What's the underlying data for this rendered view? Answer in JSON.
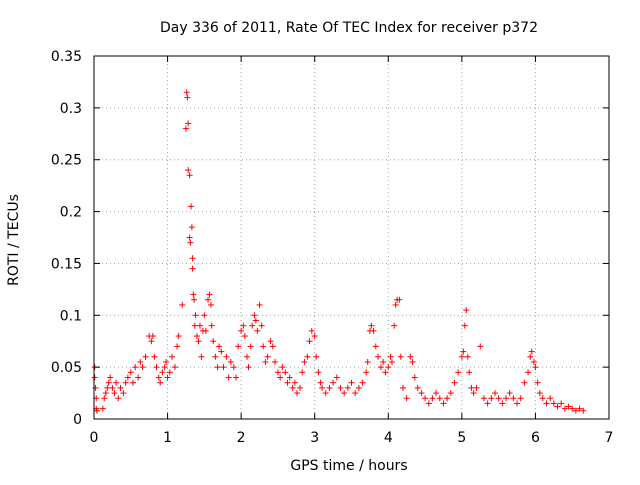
{
  "chart_data": {
    "type": "scatter",
    "title": "Day 336 of 2011, Rate Of TEC Index for receiver p372",
    "xlabel": "GPS time / hours",
    "ylabel": "ROTI / TECUs",
    "xlim": [
      0,
      7
    ],
    "ylim": [
      0,
      0.35
    ],
    "xticks": [
      0,
      1,
      2,
      3,
      4,
      5,
      6,
      7
    ],
    "yticks": [
      0,
      0.05,
      0.1,
      0.15,
      0.2,
      0.25,
      0.3,
      0.35
    ],
    "xtick_labels": [
      "0",
      "1",
      "2",
      "3",
      "4",
      "5",
      "6",
      "7"
    ],
    "ytick_labels": [
      "0",
      "0.05",
      "0.1",
      "0.15",
      "0.2",
      "0.25",
      "0.3",
      "0.35"
    ],
    "grid": true,
    "marker": "plus",
    "color": "#ff0000",
    "series": [
      {
        "points": [
          [
            0.01,
            0.05
          ],
          [
            0.01,
            0.04
          ],
          [
            0.02,
            0.03
          ],
          [
            0.03,
            0.02
          ],
          [
            0.03,
            0.01
          ],
          [
            0.04,
            0.008
          ],
          [
            0.12,
            0.01
          ],
          [
            0.14,
            0.02
          ],
          [
            0.16,
            0.025
          ],
          [
            0.18,
            0.03
          ],
          [
            0.2,
            0.035
          ],
          [
            0.22,
            0.04
          ],
          [
            0.25,
            0.03
          ],
          [
            0.28,
            0.025
          ],
          [
            0.3,
            0.035
          ],
          [
            0.33,
            0.02
          ],
          [
            0.36,
            0.03
          ],
          [
            0.4,
            0.025
          ],
          [
            0.43,
            0.035
          ],
          [
            0.46,
            0.04
          ],
          [
            0.5,
            0.045
          ],
          [
            0.53,
            0.035
          ],
          [
            0.56,
            0.05
          ],
          [
            0.6,
            0.04
          ],
          [
            0.63,
            0.055
          ],
          [
            0.66,
            0.05
          ],
          [
            0.7,
            0.06
          ],
          [
            0.75,
            0.08
          ],
          [
            0.78,
            0.075
          ],
          [
            0.8,
            0.08
          ],
          [
            0.82,
            0.06
          ],
          [
            0.85,
            0.05
          ],
          [
            0.88,
            0.04
          ],
          [
            0.9,
            0.035
          ],
          [
            0.93,
            0.045
          ],
          [
            0.96,
            0.05
          ],
          [
            0.98,
            0.055
          ],
          [
            1.0,
            0.04
          ],
          [
            1.03,
            0.045
          ],
          [
            1.06,
            0.06
          ],
          [
            1.1,
            0.05
          ],
          [
            1.13,
            0.07
          ],
          [
            1.15,
            0.08
          ],
          [
            1.2,
            0.11
          ],
          [
            1.25,
            0.28
          ],
          [
            1.26,
            0.315
          ],
          [
            1.27,
            0.31
          ],
          [
            1.28,
            0.285
          ],
          [
            1.28,
            0.24
          ],
          [
            1.3,
            0.235
          ],
          [
            1.3,
            0.175
          ],
          [
            1.31,
            0.17
          ],
          [
            1.32,
            0.205
          ],
          [
            1.33,
            0.185
          ],
          [
            1.34,
            0.155
          ],
          [
            1.34,
            0.145
          ],
          [
            1.35,
            0.12
          ],
          [
            1.36,
            0.115
          ],
          [
            1.37,
            0.09
          ],
          [
            1.38,
            0.1
          ],
          [
            1.4,
            0.08
          ],
          [
            1.42,
            0.075
          ],
          [
            1.44,
            0.09
          ],
          [
            1.46,
            0.06
          ],
          [
            1.48,
            0.085
          ],
          [
            1.5,
            0.1
          ],
          [
            1.52,
            0.085
          ],
          [
            1.55,
            0.115
          ],
          [
            1.57,
            0.12
          ],
          [
            1.59,
            0.11
          ],
          [
            1.6,
            0.09
          ],
          [
            1.62,
            0.075
          ],
          [
            1.65,
            0.06
          ],
          [
            1.68,
            0.05
          ],
          [
            1.7,
            0.07
          ],
          [
            1.73,
            0.065
          ],
          [
            1.76,
            0.05
          ],
          [
            1.8,
            0.06
          ],
          [
            1.83,
            0.04
          ],
          [
            1.86,
            0.055
          ],
          [
            1.9,
            0.05
          ],
          [
            1.93,
            0.04
          ],
          [
            1.96,
            0.07
          ],
          [
            2.0,
            0.085
          ],
          [
            2.03,
            0.09
          ],
          [
            2.05,
            0.08
          ],
          [
            2.08,
            0.06
          ],
          [
            2.1,
            0.05
          ],
          [
            2.13,
            0.07
          ],
          [
            2.15,
            0.09
          ],
          [
            2.18,
            0.1
          ],
          [
            2.2,
            0.095
          ],
          [
            2.22,
            0.085
          ],
          [
            2.25,
            0.11
          ],
          [
            2.28,
            0.09
          ],
          [
            2.3,
            0.07
          ],
          [
            2.33,
            0.055
          ],
          [
            2.36,
            0.06
          ],
          [
            2.4,
            0.075
          ],
          [
            2.43,
            0.07
          ],
          [
            2.46,
            0.055
          ],
          [
            2.5,
            0.045
          ],
          [
            2.53,
            0.04
          ],
          [
            2.56,
            0.05
          ],
          [
            2.6,
            0.045
          ],
          [
            2.63,
            0.035
          ],
          [
            2.66,
            0.04
          ],
          [
            2.7,
            0.03
          ],
          [
            2.73,
            0.035
          ],
          [
            2.76,
            0.025
          ],
          [
            2.8,
            0.03
          ],
          [
            2.83,
            0.045
          ],
          [
            2.86,
            0.055
          ],
          [
            2.9,
            0.06
          ],
          [
            2.93,
            0.075
          ],
          [
            2.96,
            0.085
          ],
          [
            3.0,
            0.08
          ],
          [
            3.02,
            0.06
          ],
          [
            3.05,
            0.045
          ],
          [
            3.08,
            0.035
          ],
          [
            3.1,
            0.03
          ],
          [
            3.15,
            0.025
          ],
          [
            3.2,
            0.03
          ],
          [
            3.25,
            0.035
          ],
          [
            3.3,
            0.04
          ],
          [
            3.35,
            0.03
          ],
          [
            3.4,
            0.025
          ],
          [
            3.45,
            0.03
          ],
          [
            3.5,
            0.035
          ],
          [
            3.55,
            0.025
          ],
          [
            3.6,
            0.03
          ],
          [
            3.65,
            0.035
          ],
          [
            3.7,
            0.045
          ],
          [
            3.72,
            0.055
          ],
          [
            3.75,
            0.085
          ],
          [
            3.77,
            0.09
          ],
          [
            3.8,
            0.085
          ],
          [
            3.83,
            0.07
          ],
          [
            3.86,
            0.06
          ],
          [
            3.9,
            0.05
          ],
          [
            3.93,
            0.055
          ],
          [
            3.96,
            0.045
          ],
          [
            4.0,
            0.05
          ],
          [
            4.03,
            0.06
          ],
          [
            4.05,
            0.055
          ],
          [
            4.08,
            0.09
          ],
          [
            4.1,
            0.11
          ],
          [
            4.12,
            0.115
          ],
          [
            4.15,
            0.115
          ],
          [
            4.17,
            0.06
          ],
          [
            4.2,
            0.03
          ],
          [
            4.25,
            0.02
          ],
          [
            4.3,
            0.06
          ],
          [
            4.33,
            0.055
          ],
          [
            4.36,
            0.04
          ],
          [
            4.4,
            0.03
          ],
          [
            4.45,
            0.025
          ],
          [
            4.5,
            0.02
          ],
          [
            4.55,
            0.015
          ],
          [
            4.6,
            0.02
          ],
          [
            4.65,
            0.025
          ],
          [
            4.7,
            0.02
          ],
          [
            4.75,
            0.015
          ],
          [
            4.8,
            0.02
          ],
          [
            4.85,
            0.025
          ],
          [
            4.9,
            0.035
          ],
          [
            4.95,
            0.045
          ],
          [
            5.0,
            0.06
          ],
          [
            5.02,
            0.065
          ],
          [
            5.04,
            0.09
          ],
          [
            5.06,
            0.105
          ],
          [
            5.08,
            0.06
          ],
          [
            5.1,
            0.045
          ],
          [
            5.13,
            0.03
          ],
          [
            5.16,
            0.025
          ],
          [
            5.2,
            0.03
          ],
          [
            5.25,
            0.07
          ],
          [
            5.3,
            0.02
          ],
          [
            5.35,
            0.015
          ],
          [
            5.4,
            0.02
          ],
          [
            5.45,
            0.025
          ],
          [
            5.5,
            0.02
          ],
          [
            5.55,
            0.015
          ],
          [
            5.6,
            0.02
          ],
          [
            5.65,
            0.025
          ],
          [
            5.7,
            0.02
          ],
          [
            5.75,
            0.015
          ],
          [
            5.8,
            0.02
          ],
          [
            5.85,
            0.035
          ],
          [
            5.9,
            0.045
          ],
          [
            5.93,
            0.06
          ],
          [
            5.95,
            0.065
          ],
          [
            5.98,
            0.055
          ],
          [
            6.0,
            0.05
          ],
          [
            6.03,
            0.035
          ],
          [
            6.06,
            0.025
          ],
          [
            6.1,
            0.02
          ],
          [
            6.15,
            0.015
          ],
          [
            6.2,
            0.02
          ],
          [
            6.25,
            0.015
          ],
          [
            6.3,
            0.012
          ],
          [
            6.35,
            0.015
          ],
          [
            6.4,
            0.01
          ],
          [
            6.45,
            0.012
          ],
          [
            6.5,
            0.01
          ],
          [
            6.55,
            0.008
          ],
          [
            6.6,
            0.01
          ],
          [
            6.65,
            0.008
          ]
        ]
      }
    ]
  }
}
